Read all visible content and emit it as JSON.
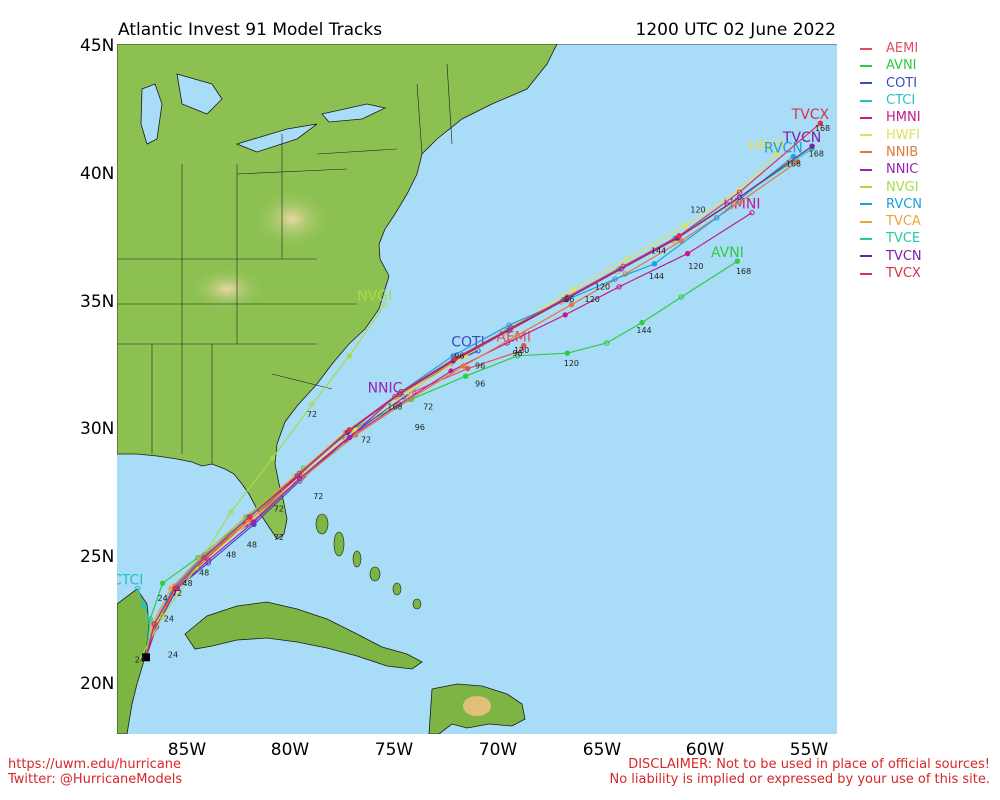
{
  "map": {
    "title": "Atlantic Invest 91 Model Tracks",
    "date": "1200 UTC 02 June 2022",
    "lat_labels": [
      "45N",
      "40N",
      "35N",
      "30N",
      "25N",
      "20N"
    ],
    "lat_values": [
      45,
      40,
      35,
      30,
      25,
      20
    ],
    "lon_labels": [
      "85W",
      "80W",
      "75W",
      "70W",
      "65W",
      "60W",
      "55W"
    ],
    "lon_values": [
      -85,
      -80,
      -75,
      -70,
      -65,
      -60,
      -55
    ],
    "extent": {
      "lon_min": -88.4,
      "lon_max": -53.7,
      "lat_min": 18.1,
      "lat_max": 45.1
    },
    "colors": {
      "ocean": "#a9dcf6",
      "land": "#8cc152",
      "land_dark": "#5e9b2d",
      "highland": "#d9c58a"
    }
  },
  "legend": [
    {
      "label": "AEMI",
      "color": "#e0505a"
    },
    {
      "label": "AVNI",
      "color": "#2ecc40"
    },
    {
      "label": "COTI",
      "color": "#3b4cc0"
    },
    {
      "label": "CTCI",
      "color": "#25c1c8"
    },
    {
      "label": "HMNI",
      "color": "#c7198a"
    },
    {
      "label": "HWFI",
      "color": "#e4e05a"
    },
    {
      "label": "NNIB",
      "color": "#e07a3a"
    },
    {
      "label": "NNIC",
      "color": "#9a22b5"
    },
    {
      "label": "NVGI",
      "color": "#a6db48"
    },
    {
      "label": "RVCN",
      "color": "#1f9fe0"
    },
    {
      "label": "TVCA",
      "color": "#e8a73a"
    },
    {
      "label": "TVCE",
      "color": "#23c9a8"
    },
    {
      "label": "TVCN",
      "color": "#7a1fa8"
    },
    {
      "label": "TVCX",
      "color": "#d8314e"
    }
  ],
  "tracks": [
    {
      "name": "AEMI",
      "color": "#e0505a",
      "end_label": "AEMI",
      "points": [
        [
          -87,
          21.1
        ],
        [
          -86.5,
          22.3
        ],
        [
          -85.6,
          23.9
        ],
        [
          -84.2,
          25.1
        ],
        [
          -81.9,
          26.4
        ],
        [
          -79.4,
          28.2
        ],
        [
          -76.8,
          30.1
        ],
        [
          -74.1,
          31.5
        ],
        [
          -71.5,
          32.4
        ],
        [
          -68.9,
          33.1
        ],
        [
          -68.8,
          33.3
        ]
      ]
    },
    {
      "name": "AVNI",
      "color": "#2ecc40",
      "end_label": "AVNI",
      "points": [
        [
          -87,
          21.1
        ],
        [
          -86.8,
          22.6
        ],
        [
          -86.2,
          24.0
        ],
        [
          -84.5,
          25.0
        ],
        [
          -82.0,
          26.6
        ],
        [
          -79.4,
          28.5
        ],
        [
          -76.9,
          30.1
        ],
        [
          -74.2,
          31.2
        ],
        [
          -71.6,
          32.1
        ],
        [
          -69.1,
          32.9
        ],
        [
          -66.7,
          33.0
        ],
        [
          -64.8,
          33.4
        ],
        [
          -63.1,
          34.2
        ],
        [
          -61.2,
          35.2
        ],
        [
          -58.5,
          36.6
        ]
      ]
    },
    {
      "name": "COTI",
      "color": "#3b4cc0",
      "end_label": "COTI",
      "points": [
        [
          -87,
          21.1
        ],
        [
          -86.5,
          22.3
        ],
        [
          -85.5,
          23.8
        ],
        [
          -84.0,
          24.8
        ],
        [
          -81.8,
          26.3
        ],
        [
          -79.6,
          28.0
        ],
        [
          -77.1,
          29.8
        ],
        [
          -74.6,
          31.3
        ],
        [
          -72.3,
          32.6
        ],
        [
          -71.0,
          33.1
        ]
      ]
    },
    {
      "name": "CTCI",
      "color": "#25c1c8",
      "end_label": "CTCI",
      "points": [
        [
          -87,
          21.1
        ],
        [
          -86.8,
          22.5
        ],
        [
          -87.1,
          23.1
        ],
        [
          -87.4,
          23.8
        ]
      ]
    },
    {
      "name": "HMNI",
      "color": "#c7198a",
      "end_label": "HMNI",
      "points": [
        [
          -87,
          21.1
        ],
        [
          -86.6,
          22.2
        ],
        [
          -85.7,
          23.6
        ],
        [
          -84.3,
          24.8
        ],
        [
          -82.2,
          26.3
        ],
        [
          -79.9,
          28.0
        ],
        [
          -77.4,
          29.6
        ],
        [
          -74.8,
          31.0
        ],
        [
          -72.3,
          32.3
        ],
        [
          -69.6,
          33.4
        ],
        [
          -66.8,
          34.5
        ],
        [
          -64.2,
          35.6
        ],
        [
          -60.9,
          36.9
        ],
        [
          -57.8,
          38.5
        ]
      ]
    },
    {
      "name": "HWFI",
      "color": "#e4e05a",
      "end_label": "HWFI",
      "points": [
        [
          -87,
          21.1
        ],
        [
          -86.6,
          22.3
        ],
        [
          -85.6,
          23.7
        ],
        [
          -84.1,
          24.9
        ],
        [
          -81.9,
          26.5
        ],
        [
          -79.4,
          28.3
        ],
        [
          -76.9,
          30.0
        ],
        [
          -74.3,
          31.5
        ],
        [
          -71.6,
          32.9
        ],
        [
          -69.0,
          34.2
        ],
        [
          -66.4,
          35.5
        ],
        [
          -63.8,
          36.7
        ],
        [
          -61.0,
          38.0
        ],
        [
          -58.4,
          39.4
        ],
        [
          -56.6,
          40.8
        ]
      ]
    },
    {
      "name": "NNIB",
      "color": "#e07a3a",
      "end_label": "",
      "points": [
        [
          -87,
          21.1
        ],
        [
          -86.5,
          22.3
        ],
        [
          -85.6,
          23.8
        ],
        [
          -84.1,
          25.0
        ],
        [
          -82.0,
          26.5
        ],
        [
          -79.5,
          28.1
        ],
        [
          -76.9,
          29.8
        ],
        [
          -74.3,
          31.2
        ],
        [
          -71.7,
          32.5
        ],
        [
          -69.1,
          33.7
        ],
        [
          -66.5,
          34.9
        ],
        [
          -63.9,
          36.1
        ],
        [
          -61.2,
          37.4
        ],
        [
          -58.4,
          38.9
        ],
        [
          -55.6,
          40.5
        ]
      ]
    },
    {
      "name": "NNIC",
      "color": "#9a22b5",
      "end_label": "NNIC",
      "points": [
        [
          -87,
          21.1
        ],
        [
          -86.5,
          22.3
        ],
        [
          -85.5,
          23.8
        ],
        [
          -84.0,
          24.9
        ],
        [
          -81.8,
          26.4
        ],
        [
          -79.6,
          28.1
        ],
        [
          -77.2,
          29.7
        ],
        [
          -75.0,
          31.3
        ]
      ]
    },
    {
      "name": "NVGI",
      "color": "#a6db48",
      "end_label": "NVGI",
      "points": [
        [
          -87.3,
          21.0
        ],
        [
          -86.2,
          22.7
        ],
        [
          -84.6,
          24.6
        ],
        [
          -82.9,
          26.8
        ],
        [
          -80.9,
          28.9
        ],
        [
          -79.0,
          31.0
        ],
        [
          -77.2,
          32.9
        ],
        [
          -75.5,
          34.9
        ]
      ]
    },
    {
      "name": "RVCN",
      "color": "#1f9fe0",
      "end_label": "RVCN",
      "points": [
        [
          -87,
          21.1
        ],
        [
          -86.6,
          22.4
        ],
        [
          -85.7,
          23.8
        ],
        [
          -84.3,
          25.0
        ],
        [
          -82.0,
          26.6
        ],
        [
          -79.6,
          28.3
        ],
        [
          -77.2,
          30.0
        ],
        [
          -74.7,
          31.5
        ],
        [
          -72.2,
          32.9
        ],
        [
          -69.5,
          34.1
        ],
        [
          -66.7,
          35.1
        ],
        [
          -64.4,
          35.9
        ],
        [
          -62.5,
          36.5
        ],
        [
          -59.5,
          38.3
        ],
        [
          -55.8,
          40.7
        ]
      ]
    },
    {
      "name": "TVCA",
      "color": "#e8a73a",
      "end_label": "",
      "points": [
        [
          -87,
          21.1
        ],
        [
          -86.7,
          22.4
        ],
        [
          -85.8,
          23.8
        ],
        [
          -84.4,
          25.0
        ],
        [
          -82.2,
          26.6
        ],
        [
          -79.8,
          28.2
        ],
        [
          -77.4,
          29.9
        ],
        [
          -74.9,
          31.3
        ],
        [
          -72.3,
          32.6
        ],
        [
          -69.7,
          33.8
        ],
        [
          -67.0,
          35.0
        ],
        [
          -64.3,
          36.2
        ],
        [
          -61.6,
          37.4
        ],
        [
          -58.7,
          38.9
        ],
        [
          -56.0,
          40.5
        ]
      ]
    },
    {
      "name": "TVCE",
      "color": "#23c9a8",
      "end_label": "",
      "points": [
        [
          -87,
          21.1
        ],
        [
          -86.6,
          22.4
        ],
        [
          -85.6,
          23.8
        ],
        [
          -84.2,
          25.0
        ],
        [
          -82.1,
          26.6
        ],
        [
          -79.7,
          28.2
        ],
        [
          -77.3,
          29.9
        ],
        [
          -74.8,
          31.4
        ],
        [
          -72.2,
          32.7
        ],
        [
          -69.6,
          33.9
        ],
        [
          -66.9,
          35.1
        ],
        [
          -64.2,
          36.3
        ],
        [
          -61.5,
          37.5
        ],
        [
          -58.4,
          39.1
        ],
        [
          -54.9,
          41.0
        ]
      ]
    },
    {
      "name": "TVCN",
      "color": "#7a1fa8",
      "end_label": "TVCN",
      "points": [
        [
          -87,
          21.1
        ],
        [
          -86.6,
          22.4
        ],
        [
          -85.6,
          23.8
        ],
        [
          -84.2,
          25.0
        ],
        [
          -82.0,
          26.6
        ],
        [
          -79.7,
          28.2
        ],
        [
          -77.3,
          29.9
        ],
        [
          -74.8,
          31.4
        ],
        [
          -72.2,
          32.7
        ],
        [
          -69.5,
          33.9
        ],
        [
          -66.8,
          35.1
        ],
        [
          -64.1,
          36.3
        ],
        [
          -61.4,
          37.5
        ],
        [
          -58.4,
          39.1
        ],
        [
          -54.9,
          41.1
        ]
      ]
    },
    {
      "name": "TVCX",
      "color": "#d8314e",
      "end_label": "TVCX",
      "points": [
        [
          -87,
          21.1
        ],
        [
          -86.6,
          22.4
        ],
        [
          -85.6,
          23.8
        ],
        [
          -84.2,
          25.0
        ],
        [
          -82.0,
          26.6
        ],
        [
          -79.6,
          28.3
        ],
        [
          -77.2,
          30.0
        ],
        [
          -74.7,
          31.5
        ],
        [
          -72.1,
          32.8
        ],
        [
          -69.4,
          34.0
        ],
        [
          -66.7,
          35.2
        ],
        [
          -64.0,
          36.4
        ],
        [
          -61.3,
          37.6
        ],
        [
          -58.4,
          39.3
        ],
        [
          -54.5,
          42.0
        ]
      ]
    }
  ],
  "hour_labels": [
    {
      "text": "24",
      "lon": -86.2,
      "lat": 23.3
    },
    {
      "text": "24",
      "lon": -85.9,
      "lat": 22.5
    },
    {
      "text": "24",
      "lon": -85.7,
      "lat": 21.1
    },
    {
      "text": "24",
      "lon": -87.3,
      "lat": 20.9
    },
    {
      "text": "48",
      "lon": -85.0,
      "lat": 23.9
    },
    {
      "text": "48",
      "lon": -84.2,
      "lat": 24.3
    },
    {
      "text": "48",
      "lon": -82.9,
      "lat": 25.0
    },
    {
      "text": "48",
      "lon": -81.9,
      "lat": 25.4
    },
    {
      "text": "72",
      "lon": -85.5,
      "lat": 23.5
    },
    {
      "text": "72",
      "lon": -80.6,
      "lat": 26.8
    },
    {
      "text": "72",
      "lon": -80.6,
      "lat": 25.7
    },
    {
      "text": "72",
      "lon": -78.7,
      "lat": 27.3
    },
    {
      "text": "72",
      "lon": -76.4,
      "lat": 29.5
    },
    {
      "text": "72",
      "lon": -73.4,
      "lat": 30.8
    },
    {
      "text": "72",
      "lon": -79.0,
      "lat": 30.5
    },
    {
      "text": "96",
      "lon": -73.8,
      "lat": 30.0
    },
    {
      "text": "96",
      "lon": -70.9,
      "lat": 32.4
    },
    {
      "text": "96",
      "lon": -70.9,
      "lat": 31.7
    },
    {
      "text": "96",
      "lon": -71.9,
      "lat": 32.8
    },
    {
      "text": "96",
      "lon": -69.1,
      "lat": 32.9
    },
    {
      "text": "96",
      "lon": -66.6,
      "lat": 35.0
    },
    {
      "text": "120",
      "lon": -68.9,
      "lat": 33.0
    },
    {
      "text": "120",
      "lon": -66.5,
      "lat": 32.5
    },
    {
      "text": "120",
      "lon": -65.0,
      "lat": 35.5
    },
    {
      "text": "120",
      "lon": -65.5,
      "lat": 35.0
    },
    {
      "text": "120",
      "lon": -60.5,
      "lat": 36.3
    },
    {
      "text": "120",
      "lon": -60.4,
      "lat": 38.5
    },
    {
      "text": "144",
      "lon": -62.3,
      "lat": 36.9
    },
    {
      "text": "144",
      "lon": -62.4,
      "lat": 35.9
    },
    {
      "text": "144",
      "lon": -63.0,
      "lat": 33.8
    },
    {
      "text": "168",
      "lon": -58.2,
      "lat": 36.1
    },
    {
      "text": "168",
      "lon": -55.8,
      "lat": 40.3
    },
    {
      "text": "168",
      "lon": -54.4,
      "lat": 41.7
    },
    {
      "text": "168",
      "lon": -54.7,
      "lat": 40.7
    },
    {
      "text": "168",
      "lon": -75.0,
      "lat": 30.8
    }
  ],
  "footer": {
    "left_line1": "https://uwm.edu/hurricane",
    "left_line2": "Twitter: @HurricaneModels",
    "right_line1": "DISCLAIMER: Not to be used in place of official sources!",
    "right_line2": "No liability is implied or expressed by your use of this site."
  }
}
